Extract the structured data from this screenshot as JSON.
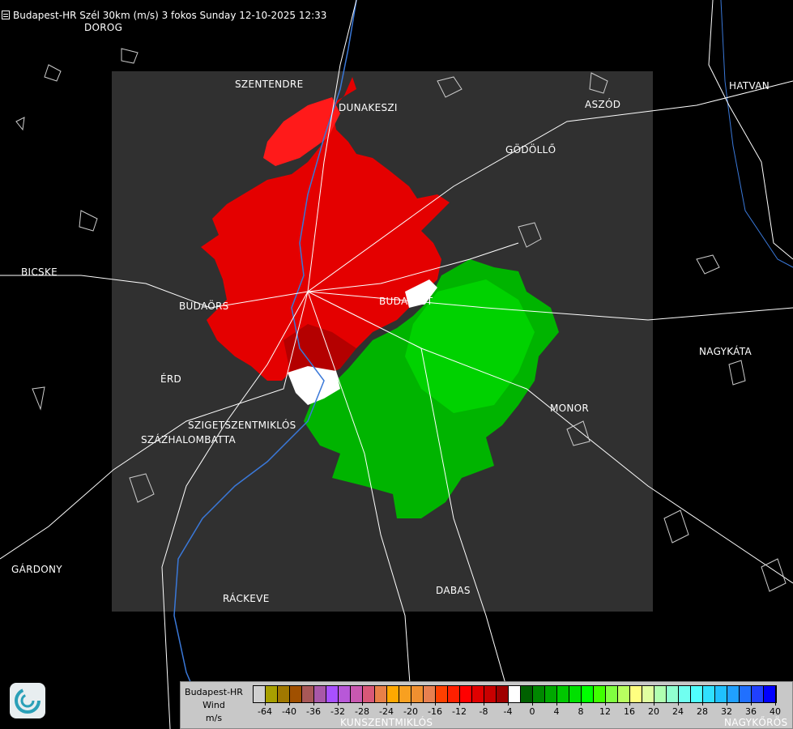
{
  "title": "Budapest-HR Szél 30km (m/s) 3 fokos Sunday 12-10-2025 12:33",
  "cities": [
    {
      "name": "DOROG"
    },
    {
      "name": "SZENTENDRE"
    },
    {
      "name": "DUNAKESZI"
    },
    {
      "name": "HATVAN"
    },
    {
      "name": "ASZÓD"
    },
    {
      "name": "GÖDÖLLŐ"
    },
    {
      "name": "BICSKE"
    },
    {
      "name": "BUDAÖRS"
    },
    {
      "name": "BUDAPEST"
    },
    {
      "name": "NAGYKÁTA"
    },
    {
      "name": "ÉRD"
    },
    {
      "name": "MONOR"
    },
    {
      "name": "SZIGETSZENTMIKLÓS"
    },
    {
      "name": "SZÁZHALOMBATTA"
    },
    {
      "name": "GÁRDONY"
    },
    {
      "name": "RÁCKEVE"
    },
    {
      "name": "DABAS"
    },
    {
      "name": "KUNSZENTMIKLÓS"
    },
    {
      "name": "NAGYKŐRÖS"
    }
  ],
  "colors": {
    "background": "#000000",
    "coverage": "#303030",
    "approaching": "#e00000",
    "receding": "#00b000",
    "river": "#3a78d8",
    "roads": "#ffffff"
  },
  "legend": {
    "station": "Budapest-HR",
    "quantity": "Wind",
    "unit": "m/s",
    "swatch_colors": [
      "#d0d0d0",
      "#a8a000",
      "#a07800",
      "#a05000",
      "#a85858",
      "#a858a8",
      "#a850ff",
      "#b858d8",
      "#c858b0",
      "#d85878",
      "#e88048",
      "#ffa800",
      "#f8a020",
      "#f09030",
      "#e88050",
      "#ff4000",
      "#ff2000",
      "#ff0000",
      "#e00000",
      "#c80000",
      "#a00000",
      "#ffffff",
      "#006000",
      "#008800",
      "#00a800",
      "#00c800",
      "#00e000",
      "#00ff00",
      "#40ff00",
      "#80ff40",
      "#b8ff60",
      "#ffff80",
      "#e0ffa0",
      "#b0ffb0",
      "#90ffd0",
      "#70fff0",
      "#50ffff",
      "#30e0ff",
      "#20c0ff",
      "#20a0ff",
      "#2070ff",
      "#2040ff",
      "#0000ff"
    ],
    "tick_labels": [
      "-64",
      "-40",
      "-36",
      "-32",
      "-28",
      "-24",
      "-20",
      "-16",
      "-12",
      "-8",
      "-4",
      "0",
      "4",
      "8",
      "12",
      "16",
      "20",
      "24",
      "28",
      "32",
      "36",
      "40"
    ]
  },
  "logo": "radar-logo-icon"
}
